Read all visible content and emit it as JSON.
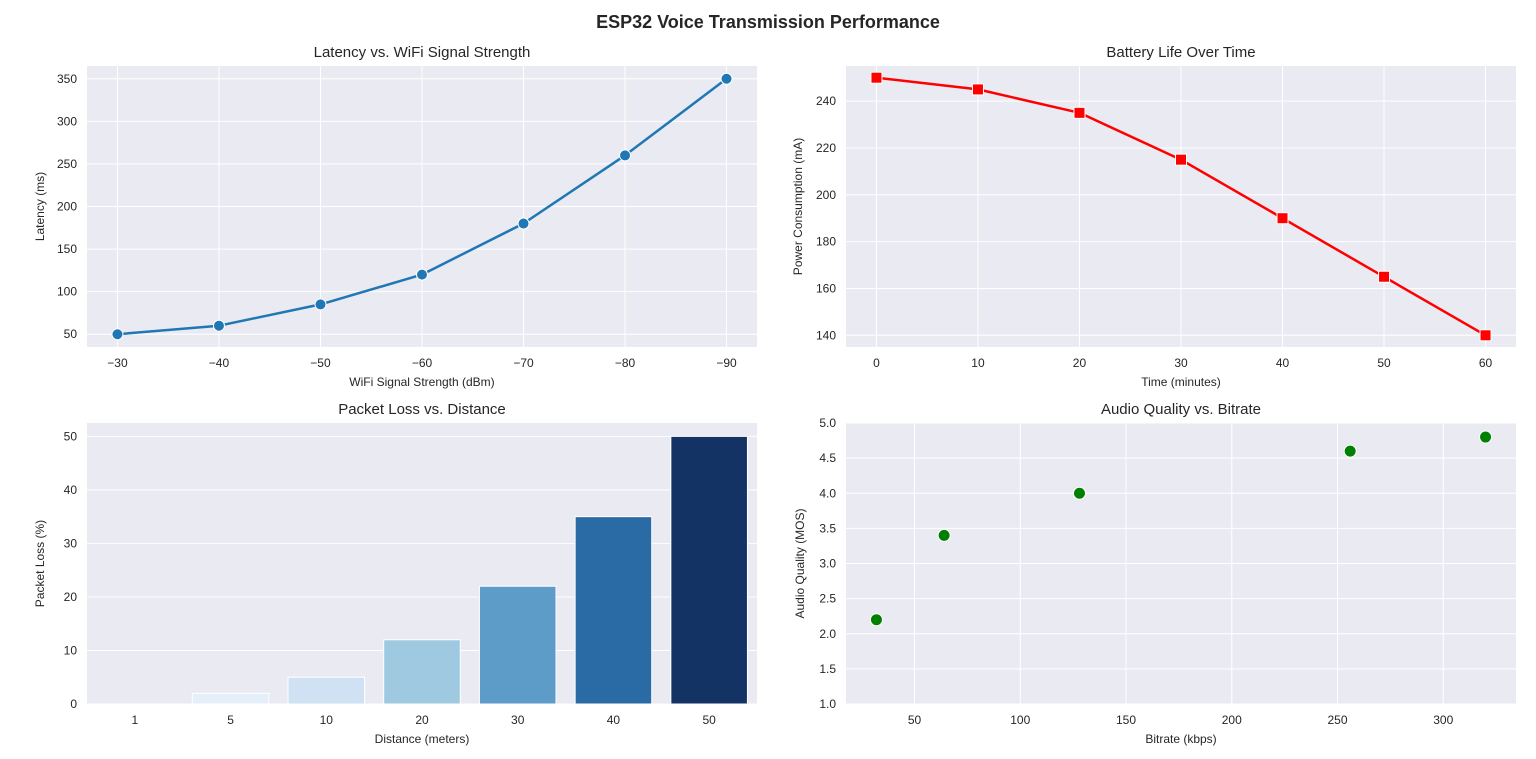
{
  "figure": {
    "suptitle": "ESP32 Voice Transmission Performance"
  },
  "theme": {
    "axes_facecolor": "#eaeaf2",
    "grid_color": "#ffffff",
    "text_color": "#262626"
  },
  "chart_data": [
    {
      "id": "latency",
      "type": "line",
      "title": "Latency vs. WiFi Signal Strength",
      "xlabel": "WiFi Signal Strength (dBm)",
      "ylabel": "Latency (ms)",
      "x_inverted": true,
      "x": [
        -30,
        -40,
        -50,
        -60,
        -70,
        -80,
        -90
      ],
      "x_tick_labels": [
        "−30",
        "−40",
        "−50",
        "−60",
        "−70",
        "−80",
        "−90"
      ],
      "y_ticks": [
        50,
        100,
        150,
        200,
        250,
        300,
        350
      ],
      "ylim": [
        35,
        365
      ],
      "series": [
        {
          "values": [
            50,
            60,
            85,
            120,
            180,
            260,
            350
          ],
          "color": "#1f77b4",
          "marker": "circle"
        }
      ],
      "grid": true
    },
    {
      "id": "battery",
      "type": "line",
      "title": "Battery Life Over Time",
      "xlabel": "Time (minutes)",
      "ylabel": "Power Consumption (mA)",
      "x": [
        0,
        10,
        20,
        30,
        40,
        50,
        60
      ],
      "x_ticks": [
        0,
        10,
        20,
        30,
        40,
        50,
        60
      ],
      "y_ticks": [
        140,
        160,
        180,
        200,
        220,
        240
      ],
      "ylim": [
        135,
        255
      ],
      "series": [
        {
          "values": [
            250,
            245,
            235,
            215,
            190,
            165,
            140
          ],
          "color": "#ff0000",
          "marker": "square"
        }
      ],
      "grid": true
    },
    {
      "id": "packet",
      "type": "bar",
      "title": "Packet Loss vs. Distance",
      "xlabel": "Distance (meters)",
      "ylabel": "Packet Loss (%)",
      "categories": [
        "1",
        "5",
        "10",
        "20",
        "30",
        "40",
        "50"
      ],
      "values": [
        0,
        2,
        5,
        12,
        22,
        35,
        50
      ],
      "colors": [
        "#f7fbff",
        "#e4eff9",
        "#cfe1f2",
        "#9ec9e0",
        "#5d9bc9",
        "#2a6aa5",
        "#123363"
      ],
      "y_ticks": [
        0,
        10,
        20,
        30,
        40,
        50
      ],
      "ylim": [
        0,
        52.5
      ],
      "grid": true
    },
    {
      "id": "audio",
      "type": "scatter",
      "title": "Audio Quality vs. Bitrate",
      "xlabel": "Bitrate (kbps)",
      "ylabel": "Audio Quality (MOS)",
      "x": [
        32,
        64,
        128,
        256,
        320
      ],
      "y": [
        2.2,
        3.4,
        4.0,
        4.6,
        4.8
      ],
      "x_ticks": [
        50,
        100,
        150,
        200,
        250,
        300
      ],
      "y_ticks": [
        1.0,
        1.5,
        2.0,
        2.5,
        3.0,
        3.5,
        4.0,
        4.5,
        5.0
      ],
      "xlim": [
        17.6,
        334.4
      ],
      "ylim": [
        1.0,
        5.0
      ],
      "color": "#008000",
      "marker": "circle",
      "grid": true
    }
  ]
}
